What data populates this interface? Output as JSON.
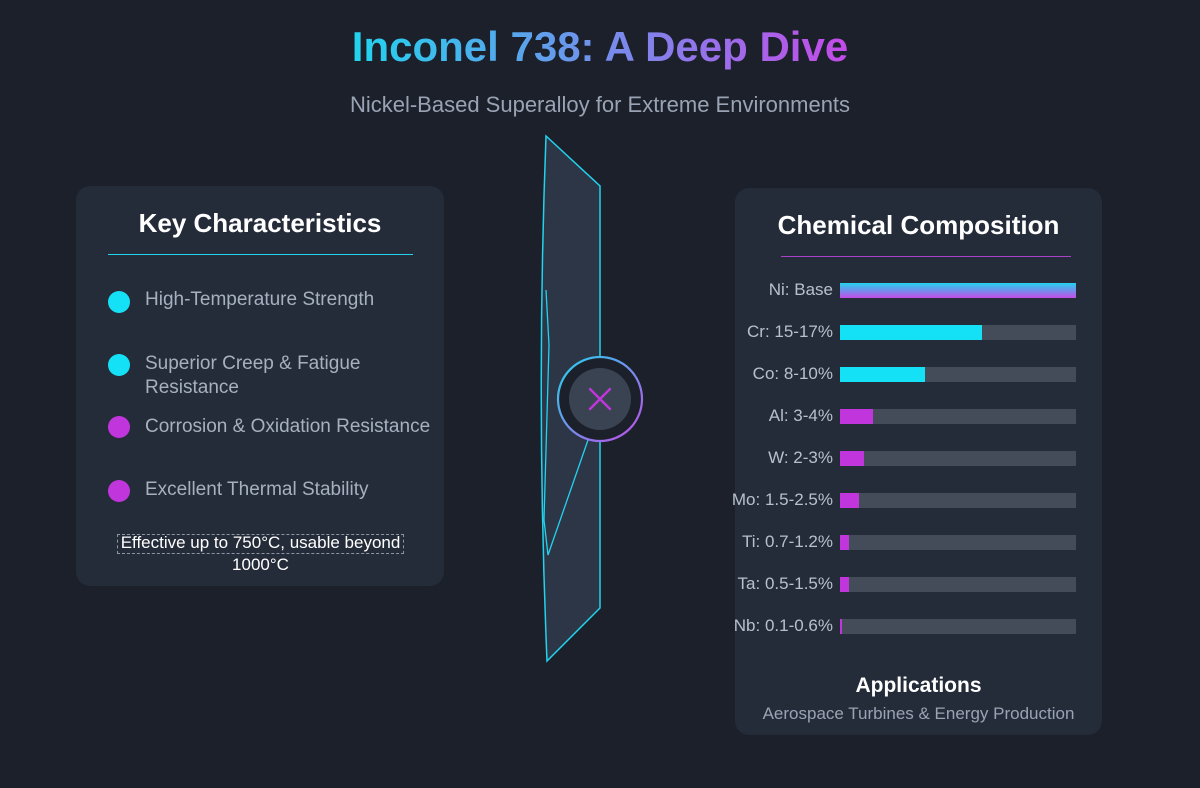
{
  "header": {
    "title": "Inconel 738: A Deep Dive",
    "subtitle": "Nickel-Based Superalloy for Extreme Environments"
  },
  "characteristics": {
    "title": "Key Characteristics",
    "items": [
      {
        "label": "High-Temperature Strength",
        "color": "#15e1f6"
      },
      {
        "label": "Superior Creep & Fatigue Resistance",
        "color": "#15e1f6"
      },
      {
        "label": "Corrosion & Oxidation Resistance",
        "color": "#c136dc"
      },
      {
        "label": "Excellent Thermal Stability",
        "color": "#c136dc"
      }
    ],
    "temperature_note": "Effective up to 750°C, usable beyond 1000°C"
  },
  "center_graphic": {
    "shape": "turbine-blade",
    "center_icon": "close-icon"
  },
  "composition": {
    "title": "Chemical Composition",
    "elements": [
      {
        "label": "Ni: Base",
        "fraction": 1.0,
        "color": "gradient"
      },
      {
        "label": "Cr: 15-17%",
        "fraction": 0.6,
        "color": "#15e1f6"
      },
      {
        "label": "Co: 8-10%",
        "fraction": 0.36,
        "color": "#15e1f6"
      },
      {
        "label": "Al: 3-4%",
        "fraction": 0.14,
        "color": "#c136dc"
      },
      {
        "label": "W: 2-3%",
        "fraction": 0.1,
        "color": "#c136dc"
      },
      {
        "label": "Mo: 1.5-2.5%",
        "fraction": 0.08,
        "color": "#c136dc"
      },
      {
        "label": "Ti: 0.7-1.2%",
        "fraction": 0.04,
        "color": "#c136dc"
      },
      {
        "label": "Ta: 0.5-1.5%",
        "fraction": 0.04,
        "color": "#c136dc"
      },
      {
        "label": "Nb: 0.1-0.6%",
        "fraction": 0.01,
        "color": "#c136dc"
      }
    ],
    "applications_title": "Applications",
    "applications_desc": "Aerospace Turbines & Energy Production"
  },
  "colors": {
    "accent_cyan": "#22d3ee",
    "accent_magenta": "#c44be8",
    "background": "#1b202b",
    "card": "#252c39"
  }
}
